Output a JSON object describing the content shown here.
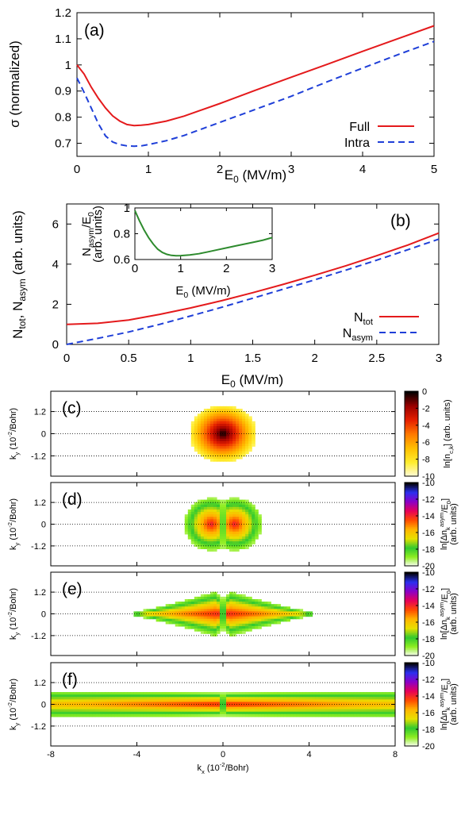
{
  "chart_data": [
    {
      "id": "a",
      "type": "line",
      "panel_label": "(a)",
      "xlabel": "E",
      "xlabel_sub": "0",
      "xlabel_unit": " (MV/m)",
      "ylabel": "σ (normalized)",
      "xlim": [
        0,
        5
      ],
      "ylim": [
        0.65,
        1.2
      ],
      "xticks": [
        "0",
        "1",
        "2",
        "3",
        "4",
        "5"
      ],
      "yticks": [
        "0.7",
        "0.8",
        "0.9",
        "1",
        "1.1",
        "1.2"
      ],
      "legend_position": "bottom-right",
      "series": [
        {
          "name": "Full",
          "color": "#e41a1c",
          "dash": "solid",
          "x": [
            0,
            0.1,
            0.2,
            0.3,
            0.4,
            0.5,
            0.6,
            0.7,
            0.8,
            0.9,
            1.0,
            1.25,
            1.5,
            2.0,
            2.5,
            3.0,
            3.5,
            4.0,
            4.5,
            5.0
          ],
          "y": [
            1.0,
            0.965,
            0.915,
            0.872,
            0.835,
            0.805,
            0.785,
            0.772,
            0.768,
            0.769,
            0.772,
            0.785,
            0.804,
            0.852,
            0.903,
            0.953,
            1.002,
            1.052,
            1.101,
            1.15
          ]
        },
        {
          "name": "Intra",
          "color": "#1f3fd8",
          "dash": "dashed",
          "x": [
            0,
            0.1,
            0.2,
            0.3,
            0.4,
            0.5,
            0.6,
            0.7,
            0.8,
            0.9,
            1.0,
            1.25,
            1.5,
            2.0,
            2.5,
            3.0,
            3.5,
            4.0,
            4.5,
            5.0
          ],
          "y": [
            0.95,
            0.895,
            0.835,
            0.775,
            0.728,
            0.705,
            0.695,
            0.69,
            0.689,
            0.69,
            0.695,
            0.71,
            0.73,
            0.78,
            0.83,
            0.88,
            0.935,
            0.988,
            1.04,
            1.09
          ]
        }
      ]
    },
    {
      "id": "b",
      "type": "line",
      "panel_label": "(b)",
      "xlabel": "E",
      "xlabel_sub": "0",
      "xlabel_unit": " (MV/m)",
      "ylabel_parts": [
        "N",
        "tot",
        ", N",
        "asym",
        " (arb. units)"
      ],
      "xlim": [
        0,
        3
      ],
      "ylim": [
        0,
        7
      ],
      "xticks": [
        "0",
        "0.5",
        "1",
        "1.5",
        "2",
        "2.5",
        "3"
      ],
      "yticks": [
        "0",
        "2",
        "4",
        "6"
      ],
      "legend_position": "bottom-right",
      "series": [
        {
          "name": "N",
          "name_sub": "tot",
          "color": "#e41a1c",
          "dash": "solid",
          "x": [
            0,
            0.25,
            0.5,
            0.75,
            1.0,
            1.25,
            1.5,
            1.75,
            2.0,
            2.25,
            2.5,
            2.75,
            3.0
          ],
          "y": [
            1.0,
            1.05,
            1.22,
            1.5,
            1.82,
            2.18,
            2.58,
            3.0,
            3.45,
            3.92,
            4.42,
            4.95,
            5.55
          ]
        },
        {
          "name": "N",
          "name_sub": "asym",
          "color": "#1f3fd8",
          "dash": "dashed",
          "x": [
            0,
            0.25,
            0.5,
            0.75,
            1.0,
            1.25,
            1.5,
            1.75,
            2.0,
            2.25,
            2.5,
            2.75,
            3.0
          ],
          "y": [
            0.0,
            0.3,
            0.62,
            1.0,
            1.42,
            1.85,
            2.3,
            2.76,
            3.22,
            3.7,
            4.2,
            4.72,
            5.25
          ]
        }
      ],
      "inset": {
        "type": "line",
        "xlabel": "E",
        "xlabel_sub": "0",
        "xlabel_unit": " (MV/m)",
        "ylabel_parts": [
          "N",
          "asym",
          "/E",
          "0"
        ],
        "ylabel2": "(arb. units)",
        "xlim": [
          0,
          3
        ],
        "ylim": [
          0.6,
          1.0
        ],
        "xticks": [
          "0",
          "1",
          "2",
          "3"
        ],
        "yticks": [
          "0.6",
          "0.8",
          "1"
        ],
        "series": [
          {
            "name": "",
            "color": "#2e8b2e",
            "dash": "solid",
            "x": [
              0,
              0.1,
              0.2,
              0.3,
              0.4,
              0.5,
              0.6,
              0.7,
              0.8,
              0.9,
              1.0,
              1.2,
              1.4,
              1.6,
              1.8,
              2.0,
              2.2,
              2.4,
              2.6,
              2.8,
              3.0
            ],
            "y": [
              0.98,
              0.9,
              0.83,
              0.77,
              0.72,
              0.68,
              0.655,
              0.64,
              0.632,
              0.629,
              0.63,
              0.635,
              0.645,
              0.66,
              0.675,
              0.69,
              0.705,
              0.72,
              0.735,
              0.75,
              0.77
            ]
          }
        ]
      }
    },
    {
      "id": "heatmaps",
      "type": "heatmap",
      "xlabel": "k",
      "xlabel_sub": "x",
      "xlabel_unit": " (10",
      "xlabel_sup": "-2",
      "xlabel_tail": "/Bohr)",
      "ylabel": "k",
      "ylabel_sub": "y",
      "ylabel_unit": " (10",
      "ylabel_sup": "-2",
      "ylabel_tail": "/Bohr)",
      "xlim": [
        -8,
        8
      ],
      "ylim": [
        -2.3,
        2.3
      ],
      "xticks": [
        "-8",
        "-4",
        "0",
        "4",
        "8"
      ],
      "yticks": [
        "1.2",
        "0",
        "-1.2"
      ],
      "grid": "dotted horizontal at 1.2, 0, -1.2",
      "panels": [
        {
          "panel_label": "(c)",
          "pattern": "disk",
          "colorbar_ticks": [
            "0",
            "-2",
            "-4",
            "-6",
            "-8",
            "-10"
          ],
          "colorbar_range": [
            -10,
            0
          ],
          "colorbar_label_parts": [
            "ln[n",
            "c,k",
            "] (arb. units)"
          ],
          "colorscale": [
            "#fffbe0",
            "#ffee30",
            "#ffc000",
            "#ff7a00",
            "#e62000",
            "#9a0000",
            "#000000"
          ]
        },
        {
          "panel_label": "(d)",
          "pattern": "split-lobes-small",
          "colorbar_ticks": [
            "-10",
            "-12",
            "-14",
            "-16",
            "-18",
            "-20"
          ],
          "colorbar_range": [
            -20,
            -10
          ],
          "colorbar_label_parts": [
            "ln[Δn",
            "k",
            "asym",
            "/E",
            "0",
            "]"
          ],
          "colorbar_label2": "(arb. units)",
          "colorscale": [
            "#ffffff",
            "#90ee20",
            "#30c830",
            "#e8e000",
            "#ffb400",
            "#ff4a00",
            "#e6005a",
            "#8a00c8",
            "#2a30f0",
            "#000000"
          ]
        },
        {
          "panel_label": "(e)",
          "pattern": "split-lobes-wide",
          "colorbar_ticks": [
            "-10",
            "-12",
            "-14",
            "-16",
            "-18",
            "-20"
          ],
          "colorbar_range": [
            -20,
            -10
          ],
          "colorbar_label_parts": [
            "ln[Δn",
            "k",
            "asym",
            "/E",
            "0",
            "]"
          ],
          "colorbar_label2": "(arb. units)",
          "colorscale": [
            "#ffffff",
            "#90ee20",
            "#30c830",
            "#e8e000",
            "#ffb400",
            "#ff4a00",
            "#e6005a",
            "#8a00c8",
            "#2a30f0",
            "#000000"
          ]
        },
        {
          "panel_label": "(f)",
          "pattern": "split-band",
          "colorbar_ticks": [
            "-10",
            "-12",
            "-14",
            "-16",
            "-18",
            "-20"
          ],
          "colorbar_range": [
            -20,
            -10
          ],
          "colorbar_label_parts": [
            "ln[Δn",
            "k",
            "asym",
            "/E",
            "0",
            "]"
          ],
          "colorbar_label2": "(arb. units)",
          "colorscale": [
            "#ffffff",
            "#90ee20",
            "#30c830",
            "#e8e000",
            "#ffb400",
            "#ff4a00",
            "#e6005a",
            "#8a00c8",
            "#2a30f0",
            "#000000"
          ]
        }
      ]
    }
  ]
}
